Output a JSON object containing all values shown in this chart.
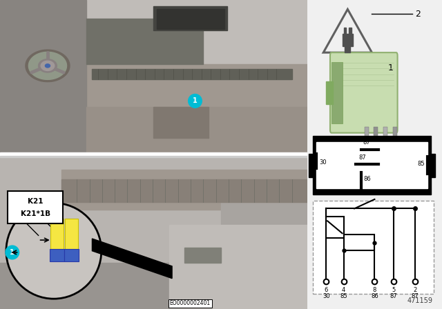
{
  "bg_color": "#f0f0f0",
  "cyan_color": "#00bcd4",
  "yellow_relay_color": "#f5e642",
  "blue_relay_color": "#3d5fc0",
  "relay_green_light": "#c8ddb0",
  "relay_green_dark": "#8aaa70",
  "relay_green_mid": "#aac890",
  "part_number": "471159",
  "eo_number": "EO0000002401",
  "k21_text": "K21",
  "k21b_text": "K21*1B",
  "pin_box_labels": [
    "87",
    "30",
    "87",
    "85",
    "86"
  ],
  "circuit_pins_row1": [
    "6",
    "4",
    "8",
    "5",
    "2"
  ],
  "circuit_pins_row2": [
    "30",
    "85",
    "86",
    "87",
    "87"
  ],
  "separator_color": "#ffffff",
  "photo_top_bg": "#b0b0b0",
  "photo_bot_bg": "#b8b4b0",
  "dash_color": "#989490",
  "wheel_color": "#808080"
}
